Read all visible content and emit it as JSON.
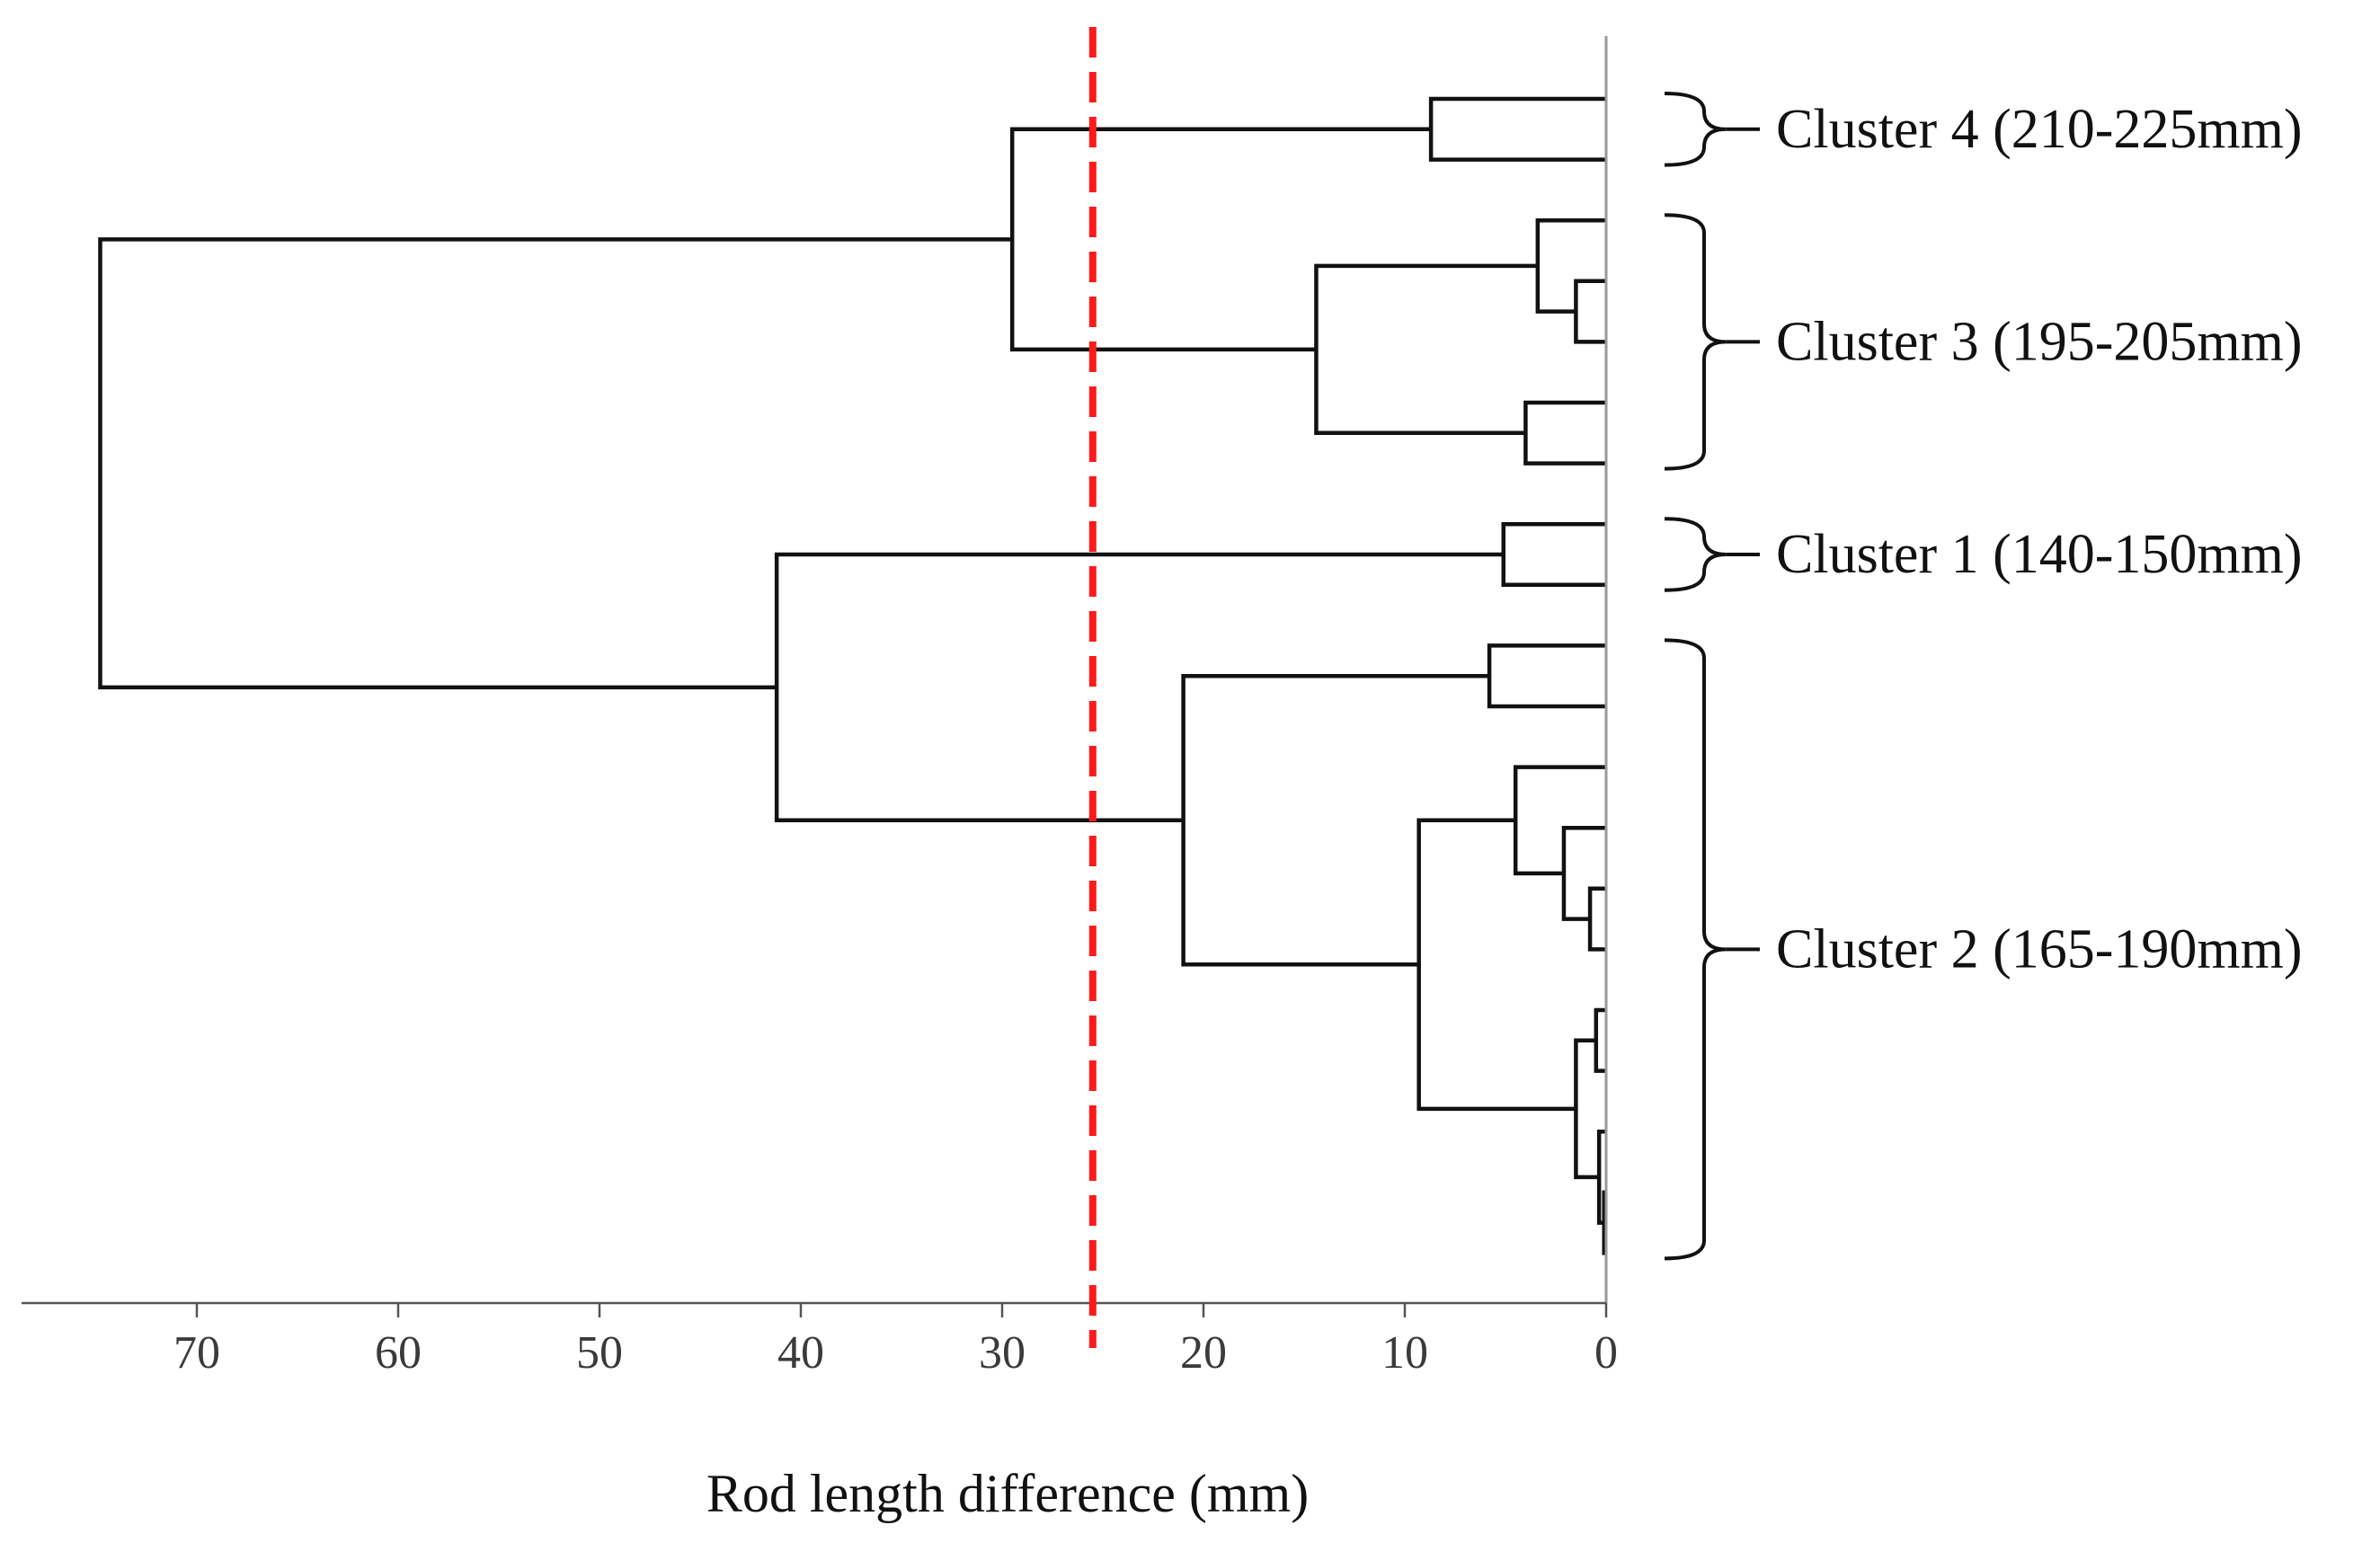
{
  "chart_data": {
    "type": "dendrogram",
    "xlabel": "Rod length difference (mm)",
    "xlim": [
      78.5,
      0
    ],
    "ticks": [
      70,
      60,
      50,
      40,
      30,
      20,
      10,
      0
    ],
    "cut_threshold": 25.5,
    "colors": {
      "line": "#111111",
      "cut": "#ff1a1a",
      "axis": "#555555",
      "baseline": "#999999"
    },
    "leaf_count": 20,
    "links": [
      {
        "a": "L0",
        "b": "L1",
        "height": 8.7
      },
      {
        "a": "L3",
        "b": "L4",
        "height": 1.5
      },
      {
        "a": "L2",
        "b": "N2",
        "height": 3.4
      },
      {
        "a": "L5",
        "b": "L6",
        "height": 4.0
      },
      {
        "a": "N3",
        "b": "N4",
        "height": 14.4
      },
      {
        "a": "N1",
        "b": "N5",
        "height": 29.5
      },
      {
        "a": "L7",
        "b": "L8",
        "height": 5.1
      },
      {
        "a": "L9",
        "b": "L10",
        "height": 5.8
      },
      {
        "a": "L13",
        "b": "L14",
        "height": 0.8
      },
      {
        "a": "L12",
        "b": "N9",
        "height": 2.1
      },
      {
        "a": "L11",
        "b": "N10",
        "height": 4.5
      },
      {
        "a": "L15",
        "b": "L16",
        "height": 0.5
      },
      {
        "a": "L18",
        "b": "L19",
        "height": 0.1
      },
      {
        "a": "L17",
        "b": "N13",
        "height": 0.35
      },
      {
        "a": "N12",
        "b": "N14",
        "height": 1.5
      },
      {
        "a": "N11",
        "b": "N15",
        "height": 9.3
      },
      {
        "a": "N8",
        "b": "N16",
        "height": 21.0
      },
      {
        "a": "N7",
        "b": "N17",
        "height": 41.2
      },
      {
        "a": "N6",
        "b": "N18",
        "height": 74.8
      }
    ],
    "clusters": [
      {
        "label": "Cluster 4 (210-225mm)",
        "first_leaf": 0,
        "last_leaf": 1
      },
      {
        "label": "Cluster 3 (195-205mm)",
        "first_leaf": 2,
        "last_leaf": 6
      },
      {
        "label": "Cluster 1 (140-150mm)",
        "first_leaf": 7,
        "last_leaf": 8
      },
      {
        "label": "Cluster 2 (165-190mm)",
        "first_leaf": 9,
        "last_leaf": 19
      }
    ]
  }
}
